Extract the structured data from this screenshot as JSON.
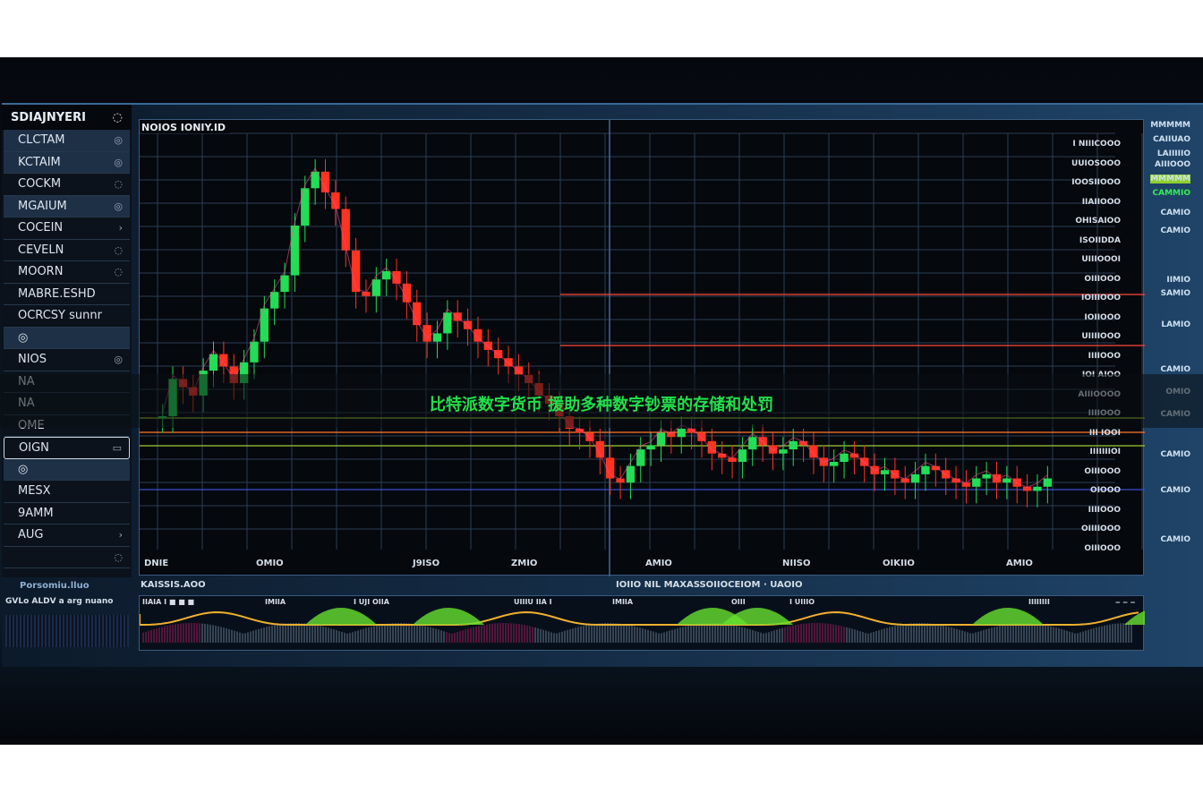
{
  "sidebar": {
    "title": "SDIAJNYERI",
    "items": [
      {
        "label": "CLCTAM",
        "icon": "◎"
      },
      {
        "label": "KCTAIM",
        "icon": "◎"
      },
      {
        "label": "COCKM",
        "icon": "◌"
      },
      {
        "label": "MGAIUM",
        "icon": "◎"
      },
      {
        "label": "COCEIN",
        "icon": "›"
      },
      {
        "label": "CEVELN",
        "icon": "◌"
      },
      {
        "label": "MOORN",
        "icon": "◌"
      },
      {
        "label": "MABRE.ESHD",
        "icon": ""
      },
      {
        "label": "OCRCSY sunnr",
        "icon": ""
      },
      {
        "label": "◎",
        "icon": ""
      },
      {
        "label": "NIOS",
        "icon": "◎"
      },
      {
        "label": "NA",
        "icon": ""
      },
      {
        "label": "NA",
        "icon": ""
      },
      {
        "label": "OME",
        "icon": ""
      },
      {
        "label": "OIGN",
        "icon": "▭"
      },
      {
        "label": "◎",
        "icon": ""
      },
      {
        "label": "MESX",
        "icon": ""
      },
      {
        "label": "9AMM",
        "icon": ""
      },
      {
        "label": "AUG",
        "icon": "›"
      },
      {
        "label": "",
        "icon": "◌"
      }
    ],
    "footer_1": "Porsomiu.lluo",
    "footer_2": "GVLo ALDV  a  arg nuano"
  },
  "chart": {
    "title": "NOIOS IONIY.ID",
    "x_labels": [
      "DNIE",
      "OMIO",
      "J9ISO",
      "ZMIO",
      "AMIO",
      "NIISO",
      "OIKIIO",
      "AMIO"
    ],
    "y_labels": [
      "I NIIICOOO",
      "UUIOSOOO",
      "IOOSIIOOO",
      "IIAIIOOO",
      "OHISAIOO",
      "ISOIIDDA",
      "UIIIOOOI",
      "OIIIOOO",
      "IOIIIOOO",
      "IOIIOOO",
      "UIIIIOOO",
      "IIIIOOO",
      "IOI AIOO",
      "AIIIOOOO",
      "IIIIOOO",
      "III IOOI",
      "IIIIIIIOI",
      "OIIIOOO",
      "OIOOO",
      "IIIIOOO",
      "OIIIIOOO",
      "OIIIOOO"
    ],
    "price_path": [
      60,
      78,
      74,
      70,
      82,
      90,
      84,
      76,
      86,
      96,
      112,
      120,
      128,
      152,
      170,
      178,
      168,
      160,
      140,
      120,
      118,
      126,
      130,
      124,
      115,
      104,
      96,
      100,
      110,
      106,
      102,
      96,
      92,
      88,
      84,
      80,
      76,
      70,
      66,
      60,
      54,
      52,
      48,
      40,
      30,
      28,
      36,
      44,
      46,
      52,
      50,
      54,
      52,
      48,
      42,
      40,
      38,
      44,
      50,
      46,
      42,
      44,
      48,
      46,
      40,
      36,
      38,
      42,
      40,
      36,
      32,
      34,
      30,
      28,
      32,
      36,
      34,
      30,
      28,
      26,
      30,
      32,
      28,
      30,
      26,
      24,
      26,
      30
    ],
    "colors": {
      "up": "#22dd55",
      "down": "#ff3322",
      "grid": "#2a3e58",
      "hline_orange": "#ff7a30",
      "hline_red": "#ff4a40",
      "hline_blue": "#3b4fd0",
      "hline_green": "#9acd32"
    }
  },
  "right_col": [
    "MMMMM",
    "CAIIUAO",
    "LAIIIIIO",
    "AIIIOOO",
    "MMMMM",
    "CAMMIO",
    "CAMIO",
    "CAMIO",
    "IIMIO",
    "SAMIO",
    "LAMIO",
    "CAMIO",
    "OMIO",
    "CAMIO",
    "CAMIO",
    "CAMIO",
    "CAMIO"
  ],
  "oscillator": {
    "title_left": "KAISSIS.AOO",
    "title_right": "IOIIO  NIL  MAXASSOIIOCEIOM  ·  UAOIO",
    "row_labels": [
      "IIAIA  I  ■ ■ ■",
      "IMIIA",
      "I UJI OIIA",
      "UIIIU IIA I",
      "IMIIA",
      "OIII",
      "I UIIIO",
      "IIIIIIII",
      "‒ ‒ ‒"
    ]
  },
  "caption": "比特派数字货币  援助多种数字钞票的存储和处罚"
}
